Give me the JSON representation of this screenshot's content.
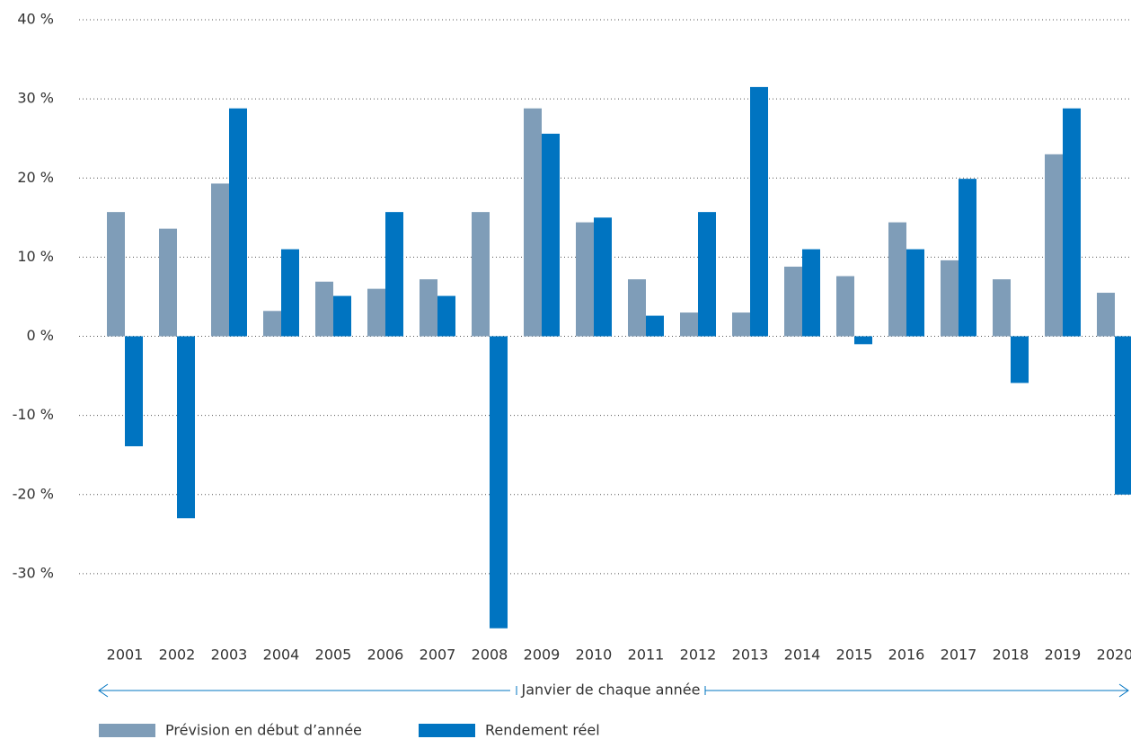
{
  "chart_data": {
    "type": "bar",
    "x_label": "Janvier de chaque année",
    "categories": [
      "2001",
      "2002",
      "2003",
      "2004",
      "2005",
      "2006",
      "2007",
      "2008",
      "2009",
      "2010",
      "2011",
      "2012",
      "2013",
      "2014",
      "2015",
      "2016",
      "2017",
      "2018",
      "2019",
      "2020"
    ],
    "series": [
      {
        "name": "Prévision en début d’année",
        "color": "#7f9db8",
        "values": [
          15.7,
          13.6,
          19.3,
          3.2,
          6.9,
          6.0,
          7.2,
          15.7,
          28.8,
          14.4,
          7.2,
          3.0,
          3.0,
          8.8,
          7.6,
          14.4,
          9.6,
          7.2,
          23.0,
          5.5
        ]
      },
      {
        "name": "Rendement réel",
        "color": "#0074c1",
        "values": [
          -13.9,
          -23.0,
          28.8,
          11.0,
          5.1,
          15.7,
          5.1,
          -36.9,
          25.6,
          15.0,
          2.6,
          15.7,
          31.5,
          11.0,
          -1.0,
          11.0,
          19.9,
          -5.9,
          28.8,
          -20.0
        ]
      }
    ],
    "ylim": [
      -40,
      40
    ],
    "yticks": [
      {
        "value": -30,
        "label": "-30 %"
      },
      {
        "value": -20,
        "label": "-20 %"
      },
      {
        "value": -10,
        "label": "-10 %"
      },
      {
        "value": 0,
        "label": "0 %"
      },
      {
        "value": 10,
        "label": "10 %"
      },
      {
        "value": 20,
        "label": "20 %"
      },
      {
        "value": 30,
        "label": "30 %"
      },
      {
        "value": 40,
        "label": "40 %"
      }
    ],
    "grid": true
  }
}
